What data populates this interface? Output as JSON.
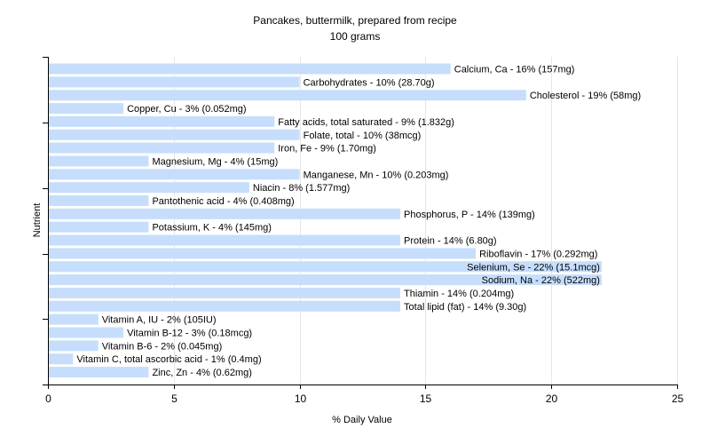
{
  "chart_data": {
    "type": "bar",
    "orientation": "horizontal",
    "title": "Pancakes, buttermilk, prepared from recipe",
    "subtitle": "100 grams",
    "xlabel": "% Daily Value",
    "ylabel": "Nutrient",
    "xlim": [
      0,
      25
    ],
    "xticks": [
      0,
      5,
      10,
      15,
      20,
      25
    ],
    "grid": true,
    "bar_color": "#c6defc",
    "grid_color": "#e6e6e6",
    "categories": [
      "Calcium, Ca",
      "Carbohydrates",
      "Cholesterol",
      "Copper, Cu",
      "Fatty acids, total saturated",
      "Folate, total",
      "Iron, Fe",
      "Magnesium, Mg",
      "Manganese, Mn",
      "Niacin",
      "Pantothenic acid",
      "Phosphorus, P",
      "Potassium, K",
      "Protein",
      "Riboflavin",
      "Selenium, Se",
      "Sodium, Na",
      "Thiamin",
      "Total lipid (fat)",
      "Vitamin A, IU",
      "Vitamin B-12",
      "Vitamin B-6",
      "Vitamin C, total ascorbic acid",
      "Zinc, Zn"
    ],
    "values": [
      16,
      10,
      19,
      3,
      9,
      10,
      9,
      4,
      10,
      8,
      4,
      14,
      4,
      14,
      17,
      22,
      22,
      14,
      14,
      2,
      3,
      2,
      1,
      4
    ],
    "labels": [
      "Calcium, Ca - 16% (157mg)",
      "Carbohydrates - 10% (28.70g)",
      "Cholesterol - 19% (58mg)",
      "Copper, Cu - 3% (0.052mg)",
      "Fatty acids, total saturated - 9% (1.832g)",
      "Folate, total - 10% (38mcg)",
      "Iron, Fe - 9% (1.70mg)",
      "Magnesium, Mg - 4% (15mg)",
      "Manganese, Mn - 10% (0.203mg)",
      "Niacin - 8% (1.577mg)",
      "Pantothenic acid - 4% (0.408mg)",
      "Phosphorus, P - 14% (139mg)",
      "Potassium, K - 4% (145mg)",
      "Protein - 14% (6.80g)",
      "Riboflavin - 17% (0.292mg)",
      "Selenium, Se - 22% (15.1mcg)",
      "Sodium, Na - 22% (522mg)",
      "Thiamin - 14% (0.204mg)",
      "Total lipid (fat) - 14% (9.30g)",
      "Vitamin A, IU - 2% (105IU)",
      "Vitamin B-12 - 3% (0.18mcg)",
      "Vitamin B-6 - 2% (0.045mg)",
      "Vitamin C, total ascorbic acid - 1% (0.4mg)",
      "Zinc, Zn - 4% (0.62mg)"
    ]
  }
}
